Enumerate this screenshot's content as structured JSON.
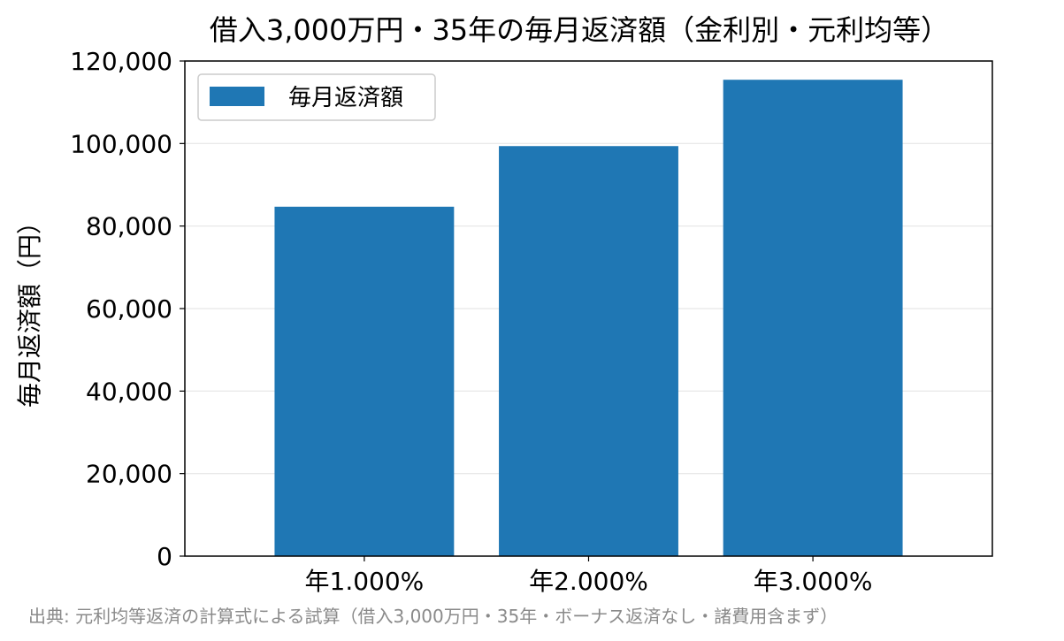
{
  "chart_data": {
    "type": "bar",
    "title": "借入3,000万円・35年の毎月返済額（金利別・元利均等）",
    "xlabel": "",
    "ylabel": "毎月返済額（円）",
    "categories": [
      "年1.000%",
      "年2.000%",
      "年3.000%"
    ],
    "series": [
      {
        "name": "毎月返済額",
        "values": [
          84685,
          99378,
          115454
        ],
        "color": "#1f77b4"
      }
    ],
    "ylim": [
      0,
      120000
    ],
    "yticks": [
      0,
      20000,
      40000,
      60000,
      80000,
      100000,
      120000
    ],
    "ytick_labels": [
      "0",
      "20,000",
      "40,000",
      "60,000",
      "80,000",
      "100,000",
      "120,000"
    ],
    "grid": "horizontal",
    "legend_position": "top-left"
  },
  "source_note": "出典: 元利均等返済の計算式による試算（借入3,000万円・35年・ボーナス返済なし・諸費用含まず）"
}
